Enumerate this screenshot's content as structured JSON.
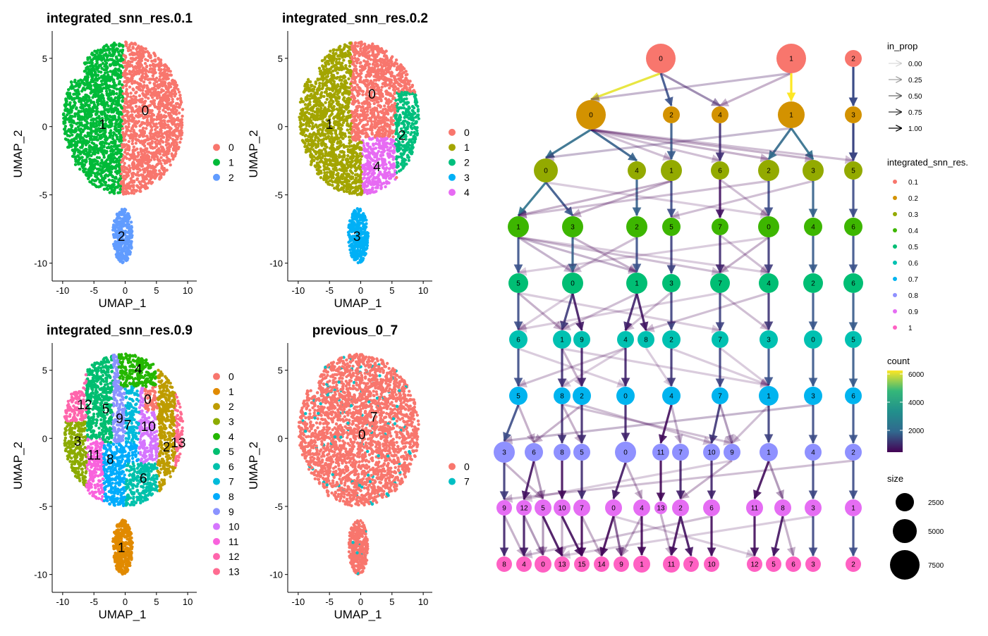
{
  "chart_data": [
    {
      "type": "scatter",
      "title": "integrated_snn_res.0.1",
      "xlabel": "UMAP_1",
      "ylabel": "UMAP_2",
      "xlim": [
        -11,
        11
      ],
      "ylim": [
        -11,
        7
      ],
      "xticks": [
        -10,
        -5,
        0,
        5,
        10
      ],
      "yticks": [
        -10,
        -5,
        0,
        5
      ],
      "legend": [
        "0",
        "1",
        "2"
      ],
      "colors": [
        "#F8766D",
        "#00BA38",
        "#619CFF"
      ],
      "labels": [
        {
          "text": "0",
          "x": 3.2,
          "y": 1.2
        },
        {
          "text": "1",
          "x": -3.6,
          "y": 0.2
        },
        {
          "text": "2",
          "x": -0.6,
          "y": -8
        }
      ]
    },
    {
      "type": "scatter",
      "title": "integrated_snn_res.0.2",
      "xlabel": "UMAP_1",
      "ylabel": "UMAP_2",
      "xlim": [
        -11,
        11
      ],
      "ylim": [
        -11,
        7
      ],
      "xticks": [
        -10,
        -5,
        0,
        5,
        10
      ],
      "yticks": [
        -10,
        -5,
        0,
        5
      ],
      "legend": [
        "0",
        "1",
        "2",
        "3",
        "4"
      ],
      "colors": [
        "#F8766D",
        "#A3A500",
        "#00BF7D",
        "#00B0F6",
        "#E76BF3"
      ],
      "labels": [
        {
          "text": "0",
          "x": 1.8,
          "y": 2.4
        },
        {
          "text": "1",
          "x": -5,
          "y": 0.2
        },
        {
          "text": "2",
          "x": 6.6,
          "y": -0.6
        },
        {
          "text": "3",
          "x": -0.6,
          "y": -8
        },
        {
          "text": "4",
          "x": 2.6,
          "y": -2.9
        }
      ]
    },
    {
      "type": "scatter",
      "title": "integrated_snn_res.0.9",
      "xlabel": "UMAP_1",
      "ylabel": "UMAP_2",
      "xlim": [
        -11,
        11
      ],
      "ylim": [
        -11,
        7
      ],
      "xticks": [
        -10,
        -5,
        0,
        5,
        10
      ],
      "yticks": [
        -10,
        -5,
        0,
        5
      ],
      "legend": [
        "0",
        "1",
        "2",
        "3",
        "4",
        "5",
        "6",
        "7",
        "8",
        "9",
        "10",
        "11",
        "12",
        "13"
      ],
      "colors": [
        "#F8766D",
        "#E18A00",
        "#BE9C00",
        "#8CAB00",
        "#24B700",
        "#00BE70",
        "#00C1AB",
        "#00BBDA",
        "#00ACFC",
        "#8B93FF",
        "#D575FE",
        "#F962DD",
        "#FF65AC",
        "#FF6C91"
      ],
      "labels": [
        {
          "text": "0",
          "x": 3.6,
          "y": 2.9
        },
        {
          "text": "1",
          "x": -0.6,
          "y": -8
        },
        {
          "text": "2",
          "x": 6.6,
          "y": -0.6
        },
        {
          "text": "3",
          "x": -7.6,
          "y": -0.2
        },
        {
          "text": "4",
          "x": 2.1,
          "y": 5.1
        },
        {
          "text": "5",
          "x": -3.1,
          "y": 2.2
        },
        {
          "text": "6",
          "x": 2.9,
          "y": -2.9
        },
        {
          "text": "7",
          "x": 0.4,
          "y": 1
        },
        {
          "text": "8",
          "x": -2.4,
          "y": -1.5
        },
        {
          "text": "9",
          "x": -0.9,
          "y": 1.5
        },
        {
          "text": "10",
          "x": 3.7,
          "y": 0.9
        },
        {
          "text": "11",
          "x": -5,
          "y": -1.2
        },
        {
          "text": "12",
          "x": -6.5,
          "y": 2.5
        },
        {
          "text": "13",
          "x": 8.5,
          "y": -0.3
        }
      ]
    },
    {
      "type": "scatter",
      "title": "previous_0_7",
      "xlabel": "UMAP_1",
      "ylabel": "UMAP_2",
      "xlim": [
        -11,
        11
      ],
      "ylim": [
        -11,
        7
      ],
      "xticks": [
        -10,
        -5,
        0,
        5,
        10
      ],
      "yticks": [
        -10,
        -5,
        0,
        5
      ],
      "legend": [
        "0",
        "7"
      ],
      "colors": [
        "#F8766D",
        "#00BFC4"
      ],
      "labels": [
        {
          "text": "7",
          "x": 2.1,
          "y": 1.6
        },
        {
          "text": "0",
          "x": 0.2,
          "y": 0.3
        }
      ]
    }
  ],
  "clustree": {
    "levels": [
      {
        "res": "0.1",
        "color": "#F8766D",
        "nodes": [
          "0",
          "1",
          "2"
        ]
      },
      {
        "res": "0.2",
        "color": "#D39200",
        "nodes": [
          "0",
          "2",
          "4",
          "1",
          "3"
        ]
      },
      {
        "res": "0.3",
        "color": "#93AA00",
        "nodes": [
          "0",
          "4",
          "1",
          "6",
          "2",
          "3",
          "5"
        ]
      },
      {
        "res": "0.4",
        "color": "#3DB600",
        "nodes": [
          "1",
          "3",
          "2",
          "5",
          "7",
          "0",
          "4",
          "6"
        ]
      },
      {
        "res": "0.5",
        "color": "#00BE74",
        "nodes": [
          "5",
          "0",
          "1",
          "3",
          "7",
          "4",
          "2",
          "6"
        ]
      },
      {
        "res": "0.6",
        "color": "#00C1B1",
        "nodes": [
          "6",
          "1",
          "9",
          "4",
          "8",
          "2",
          "7",
          "3",
          "0",
          "5"
        ]
      },
      {
        "res": "0.7",
        "color": "#00B4EF",
        "nodes": [
          "5",
          "8",
          "2",
          "0",
          "4",
          "7",
          "1",
          "3",
          "6"
        ]
      },
      {
        "res": "0.8",
        "color": "#8F91FF",
        "nodes": [
          "3",
          "6",
          "8",
          "5",
          "0",
          "11",
          "7",
          "10",
          "9",
          "1",
          "4",
          "2"
        ]
      },
      {
        "res": "0.9",
        "color": "#E56DF3",
        "nodes": [
          "9",
          "12",
          "5",
          "10",
          "7",
          "0",
          "4",
          "13",
          "2",
          "6",
          "11",
          "8",
          "3",
          "1"
        ]
      },
      {
        "res": "1",
        "color": "#FF61C3",
        "nodes": [
          "8",
          "4",
          "0",
          "13",
          "15",
          "14",
          "9",
          "1",
          "11",
          "7",
          "10",
          "12",
          "5",
          "6",
          "3",
          "2"
        ]
      }
    ],
    "legend_in_prop": {
      "title": "in_prop",
      "values": [
        "0.00",
        "0.25",
        "0.50",
        "0.75",
        "1.00"
      ]
    },
    "legend_res": {
      "title": "integrated_snn_res.",
      "values": [
        "0.1",
        "0.2",
        "0.3",
        "0.4",
        "0.5",
        "0.6",
        "0.7",
        "0.8",
        "0.9",
        "1"
      ]
    },
    "legend_count": {
      "title": "count",
      "values": [
        "6000",
        "4000",
        "2000"
      ],
      "colors": [
        "#440154",
        "#31688E",
        "#21908C",
        "#35B779",
        "#FDE725"
      ]
    },
    "legend_size": {
      "title": "size",
      "values": [
        "2500",
        "5000",
        "7500"
      ]
    }
  }
}
